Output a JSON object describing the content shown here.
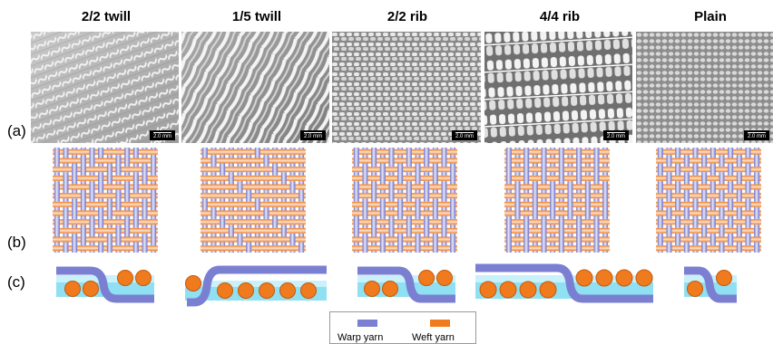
{
  "columns": [
    {
      "title": "2/2 twill",
      "scale": "2.0 mm"
    },
    {
      "title": "1/5 twill",
      "scale": "2.0 mm"
    },
    {
      "title": "2/2 rib",
      "scale": "2.0 mm"
    },
    {
      "title": "4/4 rib",
      "scale": "2.0 mm"
    },
    {
      "title": "Plain",
      "scale": "2.0 mm"
    }
  ],
  "row_labels": {
    "a": "(a)",
    "b": "(b)",
    "c": "(c)"
  },
  "legend": {
    "warp": "Warp yarn",
    "weft": "Weft yarn"
  },
  "colors": {
    "warp": "#7b7fd1",
    "weft": "#f07a1e",
    "matrix": "#8ee0f2"
  }
}
